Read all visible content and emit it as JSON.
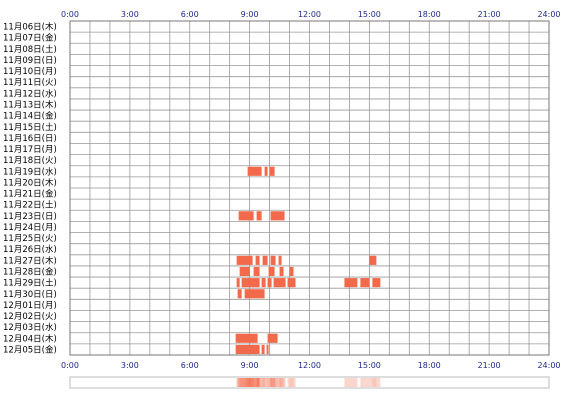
{
  "chart_data": {
    "type": "heatmap",
    "title": "",
    "xlabel": "",
    "ylabel": "",
    "xlim": [
      0,
      24
    ],
    "x_ticks": [
      "0:00",
      "3:00",
      "6:00",
      "9:00",
      "12:00",
      "15:00",
      "18:00",
      "21:00",
      "24:00"
    ],
    "rows": [
      "11月06日(木)",
      "11月07日(金)",
      "11月08日(土)",
      "11月09日(日)",
      "11月10日(月)",
      "11月11日(火)",
      "11月12日(水)",
      "11月13日(木)",
      "11月14日(金)",
      "11月15日(土)",
      "11月16日(日)",
      "11月17日(月)",
      "11月18日(火)",
      "11月19日(水)",
      "11月20日(木)",
      "11月21日(金)",
      "11月22日(土)",
      "11月23日(日)",
      "11月24日(月)",
      "11月25日(火)",
      "11月26日(水)",
      "11月27日(木)",
      "11月28日(金)",
      "11月29日(土)",
      "11月30日(日)",
      "12月01日(月)",
      "12月02日(火)",
      "12月03日(水)",
      "12月04日(木)",
      "12月05日(金)"
    ],
    "grid": true,
    "colors": {
      "mark": "#f26a4b",
      "grid": "#999999",
      "frame": "#777777",
      "tick": "#1f2a8a"
    },
    "summary_bar": true,
    "activity": [
      {
        "row": "11月19日(水)",
        "intervals": [
          [
            8.9,
            9.6
          ],
          [
            9.75,
            9.9
          ],
          [
            10.0,
            10.25
          ]
        ]
      },
      {
        "row": "11月23日(日)",
        "intervals": [
          [
            8.45,
            9.2
          ],
          [
            9.35,
            9.6
          ],
          [
            10.05,
            10.75
          ]
        ]
      },
      {
        "row": "11月27日(木)",
        "intervals": [
          [
            8.35,
            9.15
          ],
          [
            9.3,
            9.5
          ],
          [
            9.65,
            9.9
          ],
          [
            10.05,
            10.3
          ],
          [
            10.45,
            10.6
          ],
          [
            15.0,
            15.35
          ]
        ]
      },
      {
        "row": "11月28日(金)",
        "intervals": [
          [
            8.5,
            9.0
          ],
          [
            9.2,
            9.5
          ],
          [
            9.95,
            10.25
          ],
          [
            10.5,
            10.7
          ],
          [
            11.0,
            11.2
          ]
        ]
      },
      {
        "row": "11月29日(土)",
        "intervals": [
          [
            8.35,
            8.5
          ],
          [
            8.6,
            9.5
          ],
          [
            9.6,
            9.8
          ],
          [
            9.9,
            10.1
          ],
          [
            10.2,
            10.8
          ],
          [
            10.9,
            11.3
          ],
          [
            13.75,
            14.4
          ],
          [
            14.55,
            15.0
          ],
          [
            15.15,
            15.55
          ]
        ]
      },
      {
        "row": "11月30日(日)",
        "intervals": [
          [
            8.4,
            8.6
          ],
          [
            8.75,
            9.75
          ]
        ]
      },
      {
        "row": "12月04日(木)",
        "intervals": [
          [
            8.3,
            9.4
          ],
          [
            9.9,
            10.4
          ]
        ]
      },
      {
        "row": "12月05日(金)",
        "intervals": [
          [
            8.3,
            9.5
          ],
          [
            9.6,
            9.75
          ],
          [
            9.85,
            9.95
          ]
        ]
      }
    ]
  }
}
